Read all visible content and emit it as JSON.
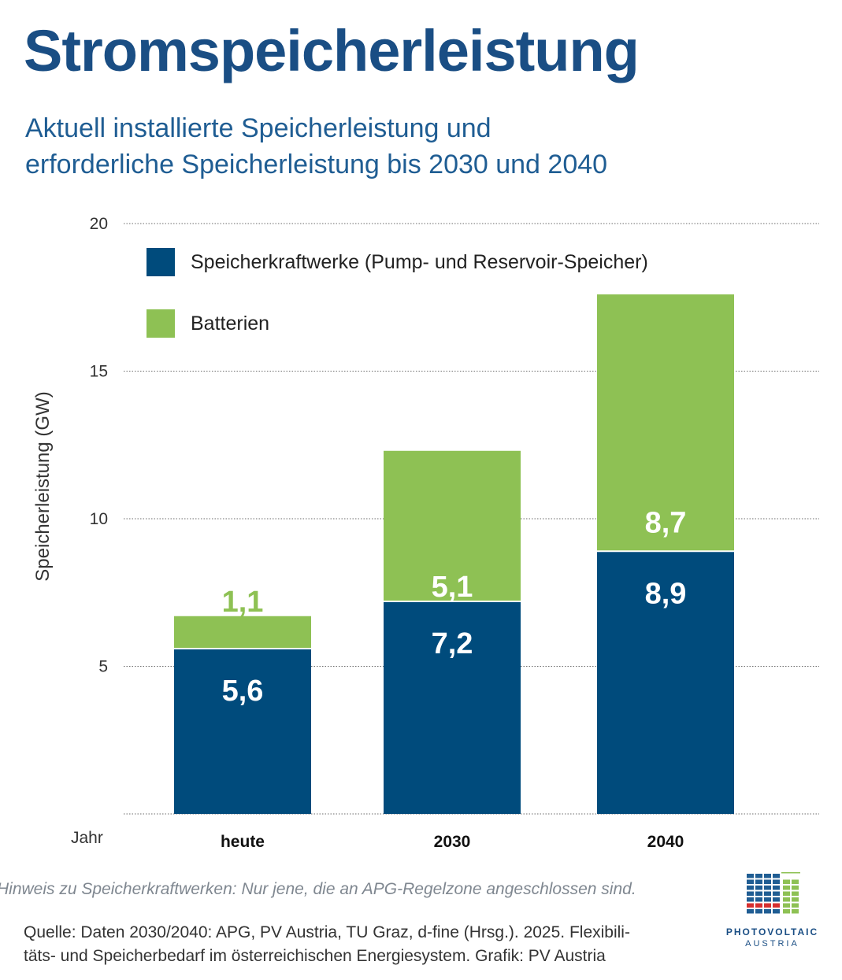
{
  "title": "Stromspeicherleistung",
  "subtitle_line1": "Aktuell installierte Speicherleistung und",
  "subtitle_line2": "erforderliche Speicherleistung bis 2030 und 2040",
  "note": "Hinweis zu Speicherkraftwerken: Nur jene, die an APG-Regelzone angeschlossen sind.",
  "source_line1": "Quelle: Daten 2030/2040: APG, PV Austria, TU Graz, d-fine (Hrsg.). 2025. Flexibili-",
  "source_line2": "täts- und Speicherbedarf im österreichischen Energiesystem. Grafik: PV Austria",
  "logo": {
    "line1": "PHOTOVOLTAIC",
    "line2": "AUSTRIA"
  },
  "colors": {
    "title": "#1a4e84",
    "speicher": "#004b7c",
    "batterien": "#8ec154",
    "label_batt_outside": "#8ec154"
  },
  "chart_data": {
    "type": "bar",
    "stacked": true,
    "categories": [
      "heute",
      "2030",
      "2040"
    ],
    "series": [
      {
        "name": "Speicherkraftwerke (Pump- und Reservoir-Speicher)",
        "values": [
          5.6,
          7.2,
          8.9
        ],
        "labels": [
          "5,6",
          "7,2",
          "8,9"
        ],
        "color": "#004b7c"
      },
      {
        "name": "Batterien",
        "values": [
          1.1,
          5.1,
          8.7
        ],
        "labels": [
          "1,1",
          "5,1",
          "8,7"
        ],
        "color": "#8ec154"
      }
    ],
    "ylabel": "Speicherleistung (GW)",
    "xlabel": "Jahr",
    "ylim": [
      0,
      20
    ],
    "yticks": [
      5,
      10,
      15,
      20
    ],
    "grid": true,
    "legend_position": "top-left"
  }
}
